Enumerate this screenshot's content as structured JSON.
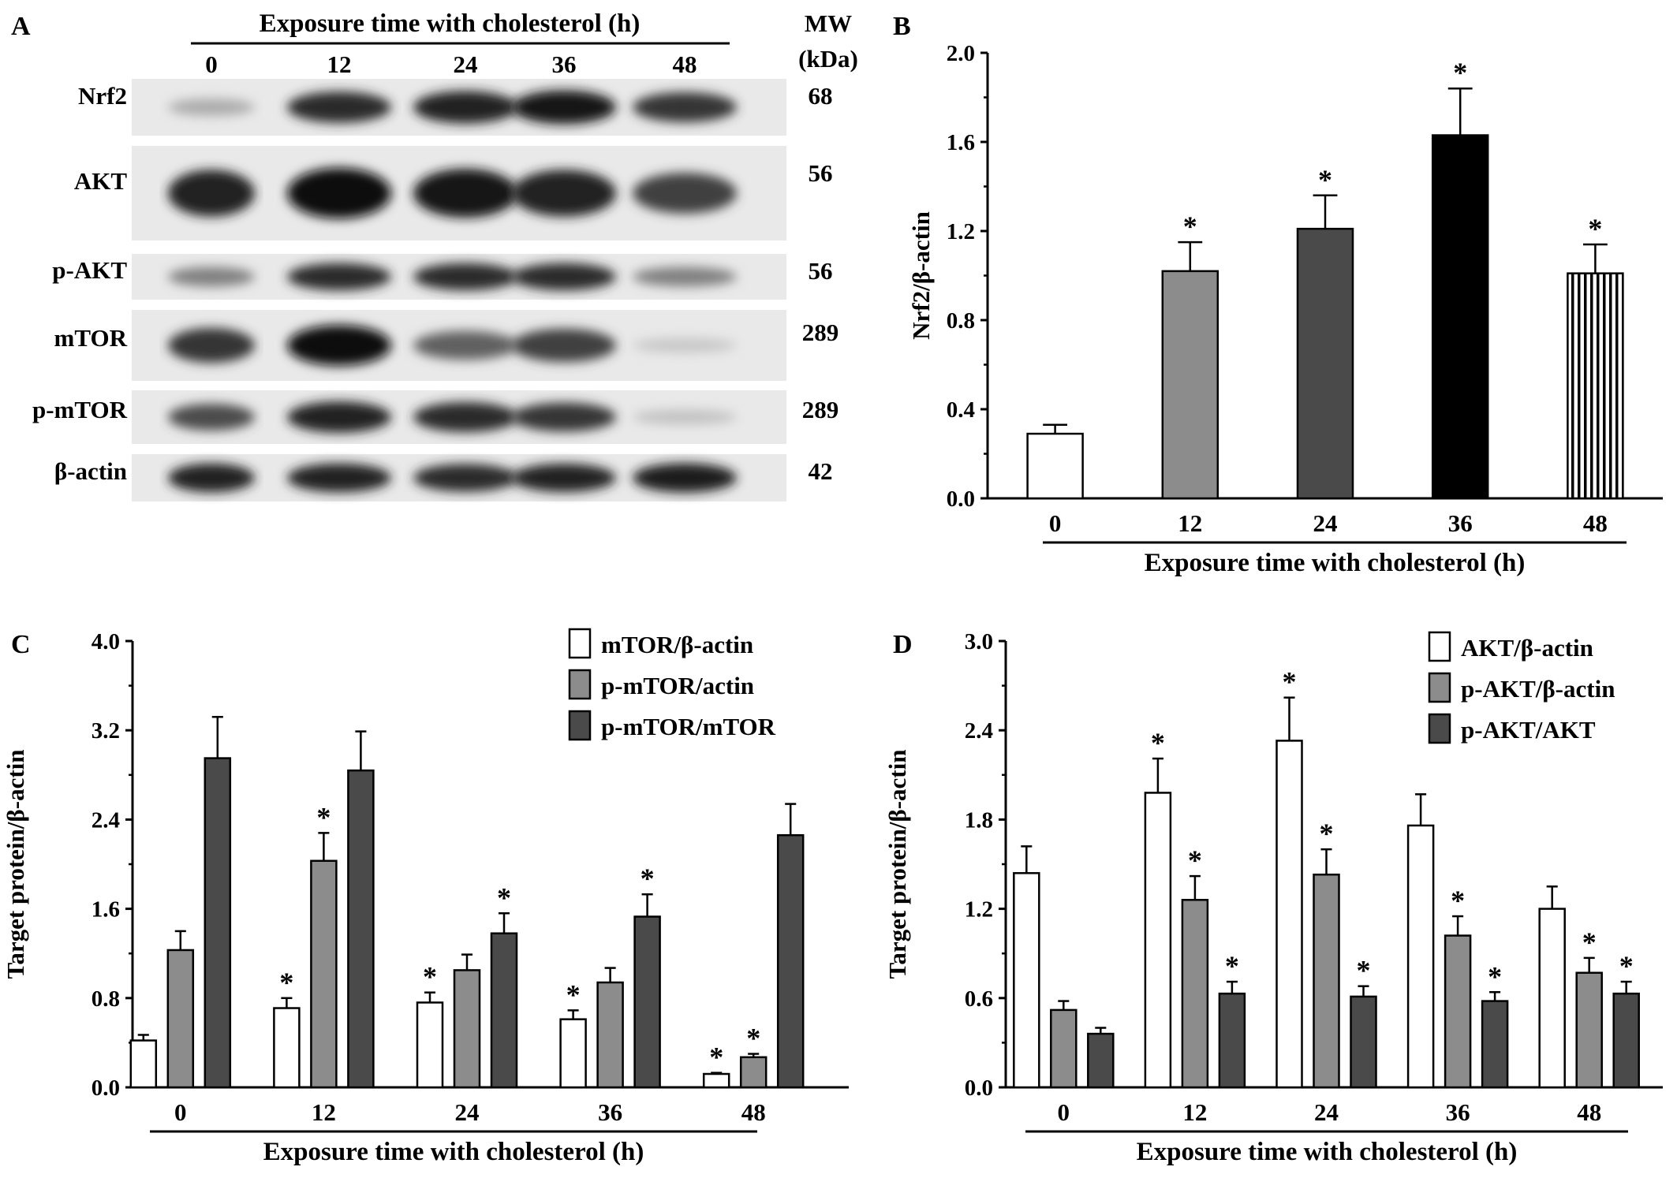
{
  "panels": {
    "A": "A",
    "B": "B",
    "C": "C",
    "D": "D"
  },
  "blot": {
    "header": "Exposure time with cholesterol (h)",
    "lanes": [
      "0",
      "12",
      "24",
      "36",
      "48"
    ],
    "mw_header": "MW",
    "mw_unit": "(kDa)",
    "rows": [
      {
        "label": "Nrf2",
        "mw": "68",
        "intensity": [
          0.25,
          0.85,
          0.9,
          0.95,
          0.8
        ]
      },
      {
        "label": "AKT",
        "mw": "56",
        "intensity": [
          0.9,
          1.0,
          0.95,
          0.9,
          0.75
        ]
      },
      {
        "label": "p-AKT",
        "mw": "56",
        "intensity": [
          0.45,
          0.85,
          0.85,
          0.85,
          0.45
        ]
      },
      {
        "label": "mTOR",
        "mw": "289",
        "intensity": [
          0.8,
          1.0,
          0.6,
          0.75,
          0.12
        ]
      },
      {
        "label": "p-mTOR",
        "mw": "289",
        "intensity": [
          0.7,
          0.9,
          0.85,
          0.8,
          0.15
        ]
      },
      {
        "label": "β-actin",
        "mw": "42",
        "intensity": [
          0.9,
          0.9,
          0.85,
          0.88,
          0.92
        ]
      }
    ]
  },
  "chart_data": [
    {
      "panel": "B",
      "type": "bar",
      "categories": [
        "0",
        "12",
        "24",
        "36",
        "48"
      ],
      "series": [
        {
          "values": [
            0.29,
            1.02,
            1.21,
            1.63,
            1.01
          ],
          "errors": [
            0.04,
            0.13,
            0.15,
            0.21,
            0.13
          ],
          "significant": [
            false,
            true,
            true,
            true,
            true
          ],
          "fills": [
            "#ffffff",
            "#8c8c8c",
            "#4a4a4a",
            "#000000",
            "stripes"
          ]
        }
      ],
      "xlabel": "Exposure time with cholesterol (h)",
      "ylabel": "Nrf2/β-actin",
      "ylim": [
        0,
        2.0
      ],
      "yticks": [
        "0.0",
        "0.4",
        "0.8",
        "1.2",
        "1.6",
        "2.0"
      ],
      "star": "*"
    },
    {
      "panel": "C",
      "type": "bar",
      "categories": [
        "0",
        "12",
        "24",
        "36",
        "48"
      ],
      "series": [
        {
          "name": "mTOR/β-actin",
          "color": "#ffffff",
          "values": [
            0.42,
            0.71,
            0.76,
            0.61,
            0.12
          ],
          "errors": [
            0.05,
            0.09,
            0.09,
            0.08,
            0.01
          ],
          "significant": [
            false,
            true,
            true,
            true,
            true
          ]
        },
        {
          "name": "p-mTOR/actin",
          "color": "#8c8c8c",
          "values": [
            1.23,
            2.03,
            1.05,
            0.94,
            0.27
          ],
          "errors": [
            0.17,
            0.25,
            0.14,
            0.13,
            0.03
          ],
          "significant": [
            false,
            true,
            false,
            false,
            true
          ]
        },
        {
          "name": "p-mTOR/mTOR",
          "color": "#4a4a4a",
          "values": [
            2.95,
            2.84,
            1.38,
            1.53,
            2.26
          ],
          "errors": [
            0.37,
            0.35,
            0.18,
            0.2,
            0.28
          ],
          "significant": [
            false,
            false,
            true,
            true,
            false
          ]
        }
      ],
      "xlabel": "Exposure time with cholesterol (h)",
      "ylabel": "Target protein/β-actin",
      "ylim": [
        0,
        4.0
      ],
      "yticks": [
        "0.0",
        "0.8",
        "1.6",
        "2.4",
        "3.2",
        "4.0"
      ],
      "legend": "top-right",
      "star": "*"
    },
    {
      "panel": "D",
      "type": "bar",
      "categories": [
        "0",
        "12",
        "24",
        "36",
        "48"
      ],
      "series": [
        {
          "name": "AKT/β-actin",
          "color": "#ffffff",
          "values": [
            1.44,
            1.98,
            2.33,
            1.76,
            1.2
          ],
          "errors": [
            0.18,
            0.23,
            0.29,
            0.21,
            0.15
          ],
          "significant": [
            false,
            true,
            true,
            false,
            false
          ]
        },
        {
          "name": "p-AKT/β-actin",
          "color": "#8c8c8c",
          "values": [
            0.52,
            1.26,
            1.43,
            1.02,
            0.77
          ],
          "errors": [
            0.06,
            0.16,
            0.17,
            0.13,
            0.1
          ],
          "significant": [
            false,
            true,
            true,
            true,
            true
          ]
        },
        {
          "name": "p-AKT/AKT",
          "color": "#4a4a4a",
          "values": [
            0.36,
            0.63,
            0.61,
            0.58,
            0.63
          ],
          "errors": [
            0.04,
            0.08,
            0.07,
            0.06,
            0.08
          ],
          "significant": [
            false,
            true,
            true,
            true,
            true
          ]
        }
      ],
      "xlabel": "Exposure time with cholesterol (h)",
      "ylabel": "Target protein/β-actin",
      "ylim": [
        0,
        3.0
      ],
      "yticks": [
        "0.0",
        "0.6",
        "1.2",
        "1.8",
        "2.4",
        "3.0"
      ],
      "legend": "top-right",
      "star": "*"
    }
  ]
}
